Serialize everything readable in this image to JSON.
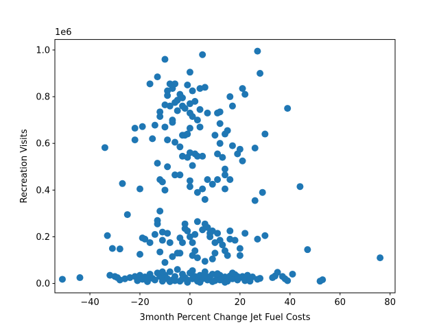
{
  "chart_data": {
    "type": "scatter",
    "title": "",
    "xlabel": "3month Percent Change Jet Fuel Costs",
    "ylabel": "Recreation Visits",
    "y_offset_label": "1e6",
    "xlim": [
      -54,
      82
    ],
    "ylim": [
      -40000,
      1045000
    ],
    "x_ticks": [
      -40,
      -20,
      0,
      20,
      40,
      60,
      80
    ],
    "x_tick_labels": [
      "−40",
      "−20",
      "0",
      "20",
      "40",
      "60",
      "80"
    ],
    "y_ticks": [
      0,
      200000,
      400000,
      600000,
      800000,
      1000000
    ],
    "y_tick_labels": [
      "0.0",
      "0.2",
      "0.4",
      "0.6",
      "0.8",
      "1.0"
    ],
    "grid": false,
    "marker_color": "#1f77b4",
    "points": [
      {
        "x": -51,
        "y": 18000
      },
      {
        "x": -44,
        "y": 25000
      },
      {
        "x": -34,
        "y": 582000
      },
      {
        "x": -33,
        "y": 205000
      },
      {
        "x": -31,
        "y": 150000
      },
      {
        "x": -32,
        "y": 35000
      },
      {
        "x": -30,
        "y": 30000
      },
      {
        "x": -28,
        "y": 148000
      },
      {
        "x": -27,
        "y": 428000
      },
      {
        "x": -25,
        "y": 295000
      },
      {
        "x": -22,
        "y": 665000
      },
      {
        "x": -22,
        "y": 615000
      },
      {
        "x": -19,
        "y": 672000
      },
      {
        "x": -20,
        "y": 405000
      },
      {
        "x": -19,
        "y": 195000
      },
      {
        "x": -20,
        "y": 125000
      },
      {
        "x": -16,
        "y": 855000
      },
      {
        "x": -15,
        "y": 620000
      },
      {
        "x": -14,
        "y": 678000
      },
      {
        "x": -13,
        "y": 885000
      },
      {
        "x": -13,
        "y": 515000
      },
      {
        "x": -12,
        "y": 715000
      },
      {
        "x": -12,
        "y": 735000
      },
      {
        "x": -12,
        "y": 445000
      },
      {
        "x": -11,
        "y": 435000
      },
      {
        "x": -10,
        "y": 960000
      },
      {
        "x": -10,
        "y": 765000
      },
      {
        "x": -10,
        "y": 670000
      },
      {
        "x": -10,
        "y": 400000
      },
      {
        "x": -9,
        "y": 825000
      },
      {
        "x": -9,
        "y": 805000
      },
      {
        "x": -9,
        "y": 615000
      },
      {
        "x": -9,
        "y": 500000
      },
      {
        "x": -8,
        "y": 855000
      },
      {
        "x": -8,
        "y": 760000
      },
      {
        "x": -7,
        "y": 835000
      },
      {
        "x": -7,
        "y": 700000
      },
      {
        "x": -7,
        "y": 690000
      },
      {
        "x": -6,
        "y": 855000
      },
      {
        "x": -6,
        "y": 775000
      },
      {
        "x": -6,
        "y": 605000
      },
      {
        "x": -6,
        "y": 465000
      },
      {
        "x": -5,
        "y": 785000
      },
      {
        "x": -5,
        "y": 740000
      },
      {
        "x": -4,
        "y": 810000
      },
      {
        "x": -4,
        "y": 585000
      },
      {
        "x": -4,
        "y": 465000
      },
      {
        "x": -3,
        "y": 795000
      },
      {
        "x": -3,
        "y": 760000
      },
      {
        "x": -3,
        "y": 635000
      },
      {
        "x": -3,
        "y": 545000
      },
      {
        "x": -2,
        "y": 750000
      },
      {
        "x": -2,
        "y": 635000
      },
      {
        "x": -1,
        "y": 850000
      },
      {
        "x": -1,
        "y": 640000
      },
      {
        "x": -1,
        "y": 540000
      },
      {
        "x": 0,
        "y": 905000
      },
      {
        "x": 0,
        "y": 770000
      },
      {
        "x": 0,
        "y": 730000
      },
      {
        "x": 0,
        "y": 665000
      },
      {
        "x": 0,
        "y": 560000
      },
      {
        "x": 0,
        "y": 440000
      },
      {
        "x": 0,
        "y": 415000
      },
      {
        "x": 1,
        "y": 825000
      },
      {
        "x": 1,
        "y": 715000
      },
      {
        "x": 1,
        "y": 505000
      },
      {
        "x": 2,
        "y": 780000
      },
      {
        "x": 2,
        "y": 555000
      },
      {
        "x": 3,
        "y": 700000
      },
      {
        "x": 3,
        "y": 545000
      },
      {
        "x": 3,
        "y": 390000
      },
      {
        "x": 4,
        "y": 835000
      },
      {
        "x": 4,
        "y": 745000
      },
      {
        "x": 4,
        "y": 670000
      },
      {
        "x": 5,
        "y": 980000
      },
      {
        "x": 5,
        "y": 545000
      },
      {
        "x": 5,
        "y": 405000
      },
      {
        "x": 6,
        "y": 840000
      },
      {
        "x": 6,
        "y": 360000
      },
      {
        "x": 7,
        "y": 730000
      },
      {
        "x": 7,
        "y": 445000
      },
      {
        "x": 9,
        "y": 425000
      },
      {
        "x": 10,
        "y": 635000
      },
      {
        "x": 11,
        "y": 730000
      },
      {
        "x": 11,
        "y": 555000
      },
      {
        "x": 11,
        "y": 445000
      },
      {
        "x": 12,
        "y": 735000
      },
      {
        "x": 12,
        "y": 685000
      },
      {
        "x": 12,
        "y": 600000
      },
      {
        "x": 13,
        "y": 540000
      },
      {
        "x": 14,
        "y": 640000
      },
      {
        "x": 14,
        "y": 490000
      },
      {
        "x": 14,
        "y": 465000
      },
      {
        "x": 14,
        "y": 405000
      },
      {
        "x": 15,
        "y": 655000
      },
      {
        "x": 16,
        "y": 445000
      },
      {
        "x": 16,
        "y": 800000
      },
      {
        "x": 17,
        "y": 590000
      },
      {
        "x": 17,
        "y": 760000
      },
      {
        "x": 19,
        "y": 555000
      },
      {
        "x": 20,
        "y": 575000
      },
      {
        "x": 21,
        "y": 525000
      },
      {
        "x": 21,
        "y": 835000
      },
      {
        "x": 22,
        "y": 810000
      },
      {
        "x": 26,
        "y": 580000
      },
      {
        "x": 27,
        "y": 995000
      },
      {
        "x": 26,
        "y": 355000
      },
      {
        "x": 28,
        "y": 900000
      },
      {
        "x": 29,
        "y": 390000
      },
      {
        "x": 30,
        "y": 640000
      },
      {
        "x": 39,
        "y": 750000
      },
      {
        "x": 44,
        "y": 415000
      },
      {
        "x": -12,
        "y": 310000
      },
      {
        "x": -13,
        "y": 270000
      },
      {
        "x": -13,
        "y": 255000
      },
      {
        "x": -11,
        "y": 220000
      },
      {
        "x": -14,
        "y": 210000
      },
      {
        "x": -18,
        "y": 190000
      },
      {
        "x": -16,
        "y": 175000
      },
      {
        "x": -11,
        "y": 185000
      },
      {
        "x": -9,
        "y": 215000
      },
      {
        "x": -8,
        "y": 175000
      },
      {
        "x": -12,
        "y": 135000
      },
      {
        "x": -10,
        "y": 90000
      },
      {
        "x": -7,
        "y": 115000
      },
      {
        "x": -5,
        "y": 130000
      },
      {
        "x": -4,
        "y": 195000
      },
      {
        "x": -3,
        "y": 175000
      },
      {
        "x": -2,
        "y": 235000
      },
      {
        "x": -2,
        "y": 255000
      },
      {
        "x": -1,
        "y": 225000
      },
      {
        "x": 0,
        "y": 200000
      },
      {
        "x": 1,
        "y": 175000
      },
      {
        "x": 2,
        "y": 210000
      },
      {
        "x": 2,
        "y": 140000
      },
      {
        "x": 3,
        "y": 265000
      },
      {
        "x": 3,
        "y": 110000
      },
      {
        "x": 5,
        "y": 230000
      },
      {
        "x": 6,
        "y": 255000
      },
      {
        "x": 7,
        "y": 240000
      },
      {
        "x": 8,
        "y": 200000
      },
      {
        "x": 8,
        "y": 215000
      },
      {
        "x": 9,
        "y": 225000
      },
      {
        "x": 10,
        "y": 175000
      },
      {
        "x": 10,
        "y": 130000
      },
      {
        "x": 11,
        "y": 215000
      },
      {
        "x": 12,
        "y": 185000
      },
      {
        "x": 13,
        "y": 165000
      },
      {
        "x": 14,
        "y": 140000
      },
      {
        "x": 16,
        "y": 225000
      },
      {
        "x": 16,
        "y": 190000
      },
      {
        "x": 18,
        "y": 185000
      },
      {
        "x": 20,
        "y": 150000
      },
      {
        "x": 22,
        "y": 215000
      },
      {
        "x": 27,
        "y": 190000
      },
      {
        "x": 30,
        "y": 205000
      },
      {
        "x": 47,
        "y": 145000
      },
      {
        "x": 76,
        "y": 110000
      },
      {
        "x": -4,
        "y": 130000
      },
      {
        "x": 1,
        "y": 120000
      },
      {
        "x": 6,
        "y": 95000
      },
      {
        "x": 9,
        "y": 105000
      },
      {
        "x": 15,
        "y": 120000
      },
      {
        "x": 20,
        "y": 120000
      },
      {
        "x": -28,
        "y": 15000
      },
      {
        "x": -26,
        "y": 20000
      },
      {
        "x": -24,
        "y": 25000
      },
      {
        "x": -22,
        "y": 30000
      },
      {
        "x": -21,
        "y": 12000
      },
      {
        "x": -20,
        "y": 35000
      },
      {
        "x": -19,
        "y": 18000
      },
      {
        "x": -18,
        "y": 28000
      },
      {
        "x": -17,
        "y": 8000
      },
      {
        "x": -16,
        "y": 40000
      },
      {
        "x": -15,
        "y": 22000
      },
      {
        "x": -14,
        "y": 15000
      },
      {
        "x": -13,
        "y": 45000
      },
      {
        "x": -12,
        "y": 30000
      },
      {
        "x": -11,
        "y": 10000
      },
      {
        "x": -10,
        "y": 35000
      },
      {
        "x": -9,
        "y": 20000
      },
      {
        "x": -8,
        "y": 50000
      },
      {
        "x": -7,
        "y": 15000
      },
      {
        "x": -6,
        "y": 30000
      },
      {
        "x": -5,
        "y": 60000
      },
      {
        "x": -4,
        "y": 10000
      },
      {
        "x": -3,
        "y": 40000
      },
      {
        "x": -2,
        "y": 25000
      },
      {
        "x": -1,
        "y": 15000
      },
      {
        "x": 0,
        "y": 45000
      },
      {
        "x": 1,
        "y": 20000
      },
      {
        "x": 2,
        "y": 30000
      },
      {
        "x": 3,
        "y": 10000
      },
      {
        "x": 4,
        "y": 35000
      },
      {
        "x": 5,
        "y": 20000
      },
      {
        "x": 6,
        "y": 50000
      },
      {
        "x": 7,
        "y": 15000
      },
      {
        "x": 8,
        "y": 30000
      },
      {
        "x": 9,
        "y": 40000
      },
      {
        "x": 10,
        "y": 12000
      },
      {
        "x": 11,
        "y": 25000
      },
      {
        "x": 12,
        "y": 35000
      },
      {
        "x": 13,
        "y": 18000
      },
      {
        "x": 14,
        "y": 28000
      },
      {
        "x": 15,
        "y": 10000
      },
      {
        "x": 16,
        "y": 32000
      },
      {
        "x": 17,
        "y": 20000
      },
      {
        "x": 18,
        "y": 38000
      },
      {
        "x": 19,
        "y": 15000
      },
      {
        "x": 20,
        "y": 25000
      },
      {
        "x": 21,
        "y": 30000
      },
      {
        "x": 22,
        "y": 12000
      },
      {
        "x": 23,
        "y": 35000
      },
      {
        "x": 24,
        "y": 20000
      },
      {
        "x": 25,
        "y": 28000
      },
      {
        "x": 27,
        "y": 18000
      },
      {
        "x": 28,
        "y": 22000
      },
      {
        "x": 33,
        "y": 25000
      },
      {
        "x": 34,
        "y": 32000
      },
      {
        "x": 35,
        "y": 48000
      },
      {
        "x": 37,
        "y": 30000
      },
      {
        "x": 38,
        "y": 20000
      },
      {
        "x": 39,
        "y": 12000
      },
      {
        "x": 41,
        "y": 40000
      },
      {
        "x": 52,
        "y": 10000
      },
      {
        "x": 53,
        "y": 16000
      },
      {
        "x": -29,
        "y": 25000
      },
      {
        "x": -17,
        "y": 20000
      },
      {
        "x": -8,
        "y": 8000
      },
      {
        "x": -1,
        "y": 5000
      },
      {
        "x": 4,
        "y": 5000
      },
      {
        "x": 9,
        "y": 8000
      },
      {
        "x": 14,
        "y": 5000
      },
      {
        "x": 19,
        "y": 30000
      },
      {
        "x": 24,
        "y": 10000
      },
      {
        "x": -6,
        "y": 12000
      },
      {
        "x": 1,
        "y": 55000
      },
      {
        "x": 7,
        "y": 25000
      },
      {
        "x": 12,
        "y": 15000
      },
      {
        "x": -11,
        "y": 50000
      },
      {
        "x": 17,
        "y": 45000
      },
      {
        "x": -3,
        "y": 20000
      },
      {
        "x": 6,
        "y": 35000
      },
      {
        "x": 11,
        "y": 42000
      }
    ]
  }
}
